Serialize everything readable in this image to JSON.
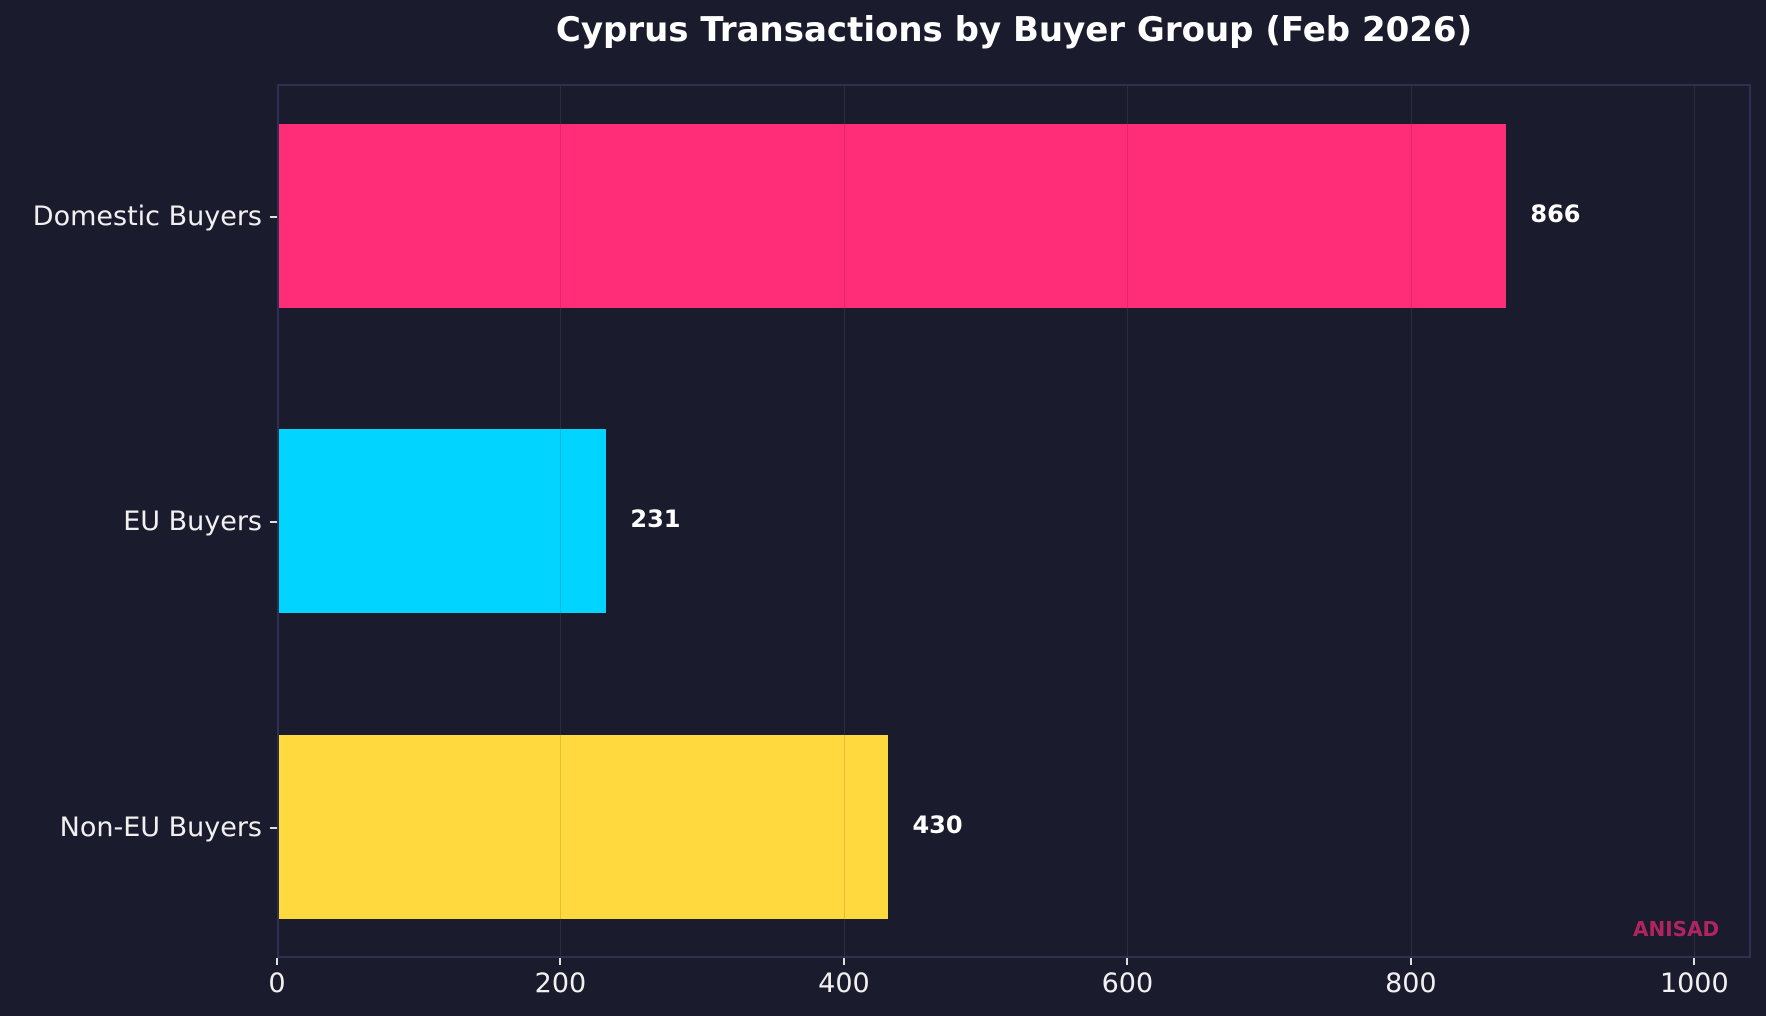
{
  "chart_data": {
    "type": "bar",
    "orientation": "horizontal",
    "title": "Cyprus Transactions by Buyer Group (Feb 2026)",
    "xlabel": "",
    "ylabel": "",
    "categories": [
      "Domestic Buyers",
      "EU Buyers",
      "Non-EU Buyers"
    ],
    "values": [
      866,
      231,
      430
    ],
    "colors": [
      "#ff2d78",
      "#00d4ff",
      "#ffd93d"
    ],
    "xlim": [
      0,
      1040
    ],
    "xticks": [
      0,
      200,
      400,
      600,
      800,
      1000
    ],
    "xtick_labels": [
      "0",
      "200",
      "400",
      "600",
      "800",
      "1000"
    ],
    "grid": true,
    "data_labels": [
      "866",
      "231",
      "430"
    ],
    "legend": null
  },
  "watermark": {
    "text": "ANISAD",
    "color": "#b0245f"
  },
  "theme": {
    "background": "#1b1b2e",
    "axis_border": "#2f2f50",
    "text": "#ffffff"
  }
}
